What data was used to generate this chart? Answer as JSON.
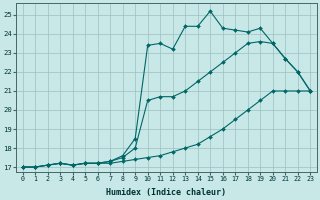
{
  "xlabel": "Humidex (Indice chaleur)",
  "bg_color": "#c8e8e8",
  "grid_color": "#9dbfbf",
  "line_color": "#006666",
  "xlim": [
    -0.5,
    23.5
  ],
  "ylim": [
    16.75,
    25.6
  ],
  "yticks": [
    17,
    18,
    19,
    20,
    21,
    22,
    23,
    24,
    25
  ],
  "xticks": [
    0,
    1,
    2,
    3,
    4,
    5,
    6,
    7,
    8,
    9,
    10,
    11,
    12,
    13,
    14,
    15,
    16,
    17,
    18,
    19,
    20,
    21,
    22,
    23
  ],
  "line1_x": [
    0,
    1,
    2,
    3,
    4,
    5,
    6,
    7,
    8,
    9,
    10,
    11,
    12,
    13,
    14,
    15,
    16,
    17,
    18,
    19,
    20,
    21,
    22,
    23
  ],
  "line1_y": [
    17.0,
    17.0,
    17.1,
    17.2,
    17.1,
    17.2,
    17.2,
    17.2,
    17.3,
    17.4,
    17.5,
    17.6,
    17.8,
    18.0,
    18.2,
    18.6,
    19.0,
    19.5,
    20.0,
    20.5,
    21.0,
    21.0,
    21.0,
    21.0
  ],
  "line2_x": [
    0,
    1,
    2,
    3,
    4,
    5,
    6,
    7,
    8,
    9,
    10,
    11,
    12,
    13,
    14,
    15,
    16,
    17,
    18,
    19,
    20,
    21,
    22,
    23
  ],
  "line2_y": [
    17.0,
    17.0,
    17.1,
    17.2,
    17.1,
    17.2,
    17.2,
    17.3,
    17.5,
    18.0,
    20.5,
    20.7,
    20.7,
    21.0,
    21.5,
    22.0,
    22.5,
    23.0,
    23.5,
    23.6,
    23.5,
    22.7,
    22.0,
    21.0
  ],
  "line3_x": [
    0,
    1,
    2,
    3,
    4,
    5,
    6,
    7,
    8,
    9,
    10,
    11,
    12,
    13,
    14,
    15,
    16,
    17,
    18,
    19,
    20,
    21,
    22,
    23
  ],
  "line3_y": [
    17.0,
    17.0,
    17.1,
    17.2,
    17.1,
    17.2,
    17.2,
    17.3,
    17.6,
    18.5,
    23.4,
    23.5,
    23.2,
    24.4,
    24.4,
    25.2,
    24.3,
    24.2,
    24.1,
    24.3,
    23.5,
    22.7,
    22.0,
    21.0
  ]
}
